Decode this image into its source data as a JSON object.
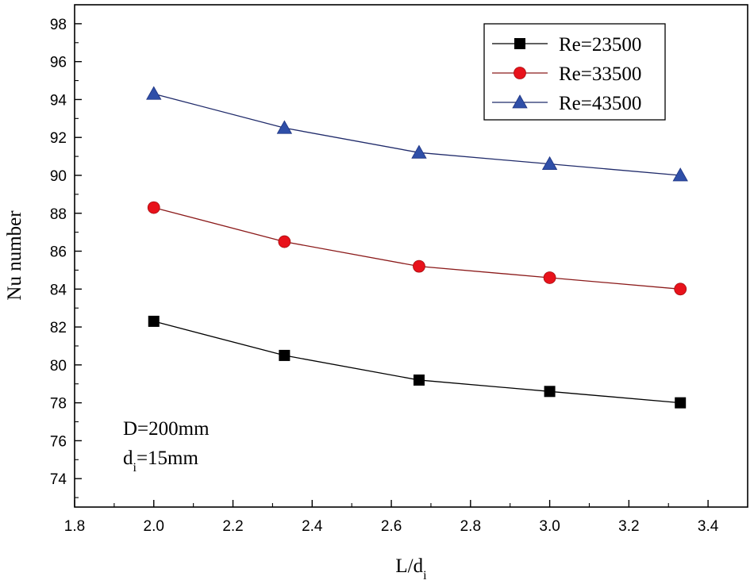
{
  "chart_data": {
    "type": "line",
    "xlabel": "L/d",
    "xlabel_sub": "i",
    "ylabel": "Nu number",
    "xlim": [
      1.8,
      3.5
    ],
    "ylim": [
      72.5,
      99
    ],
    "xticks": [
      "1.8",
      "2.0",
      "2.2",
      "2.4",
      "2.6",
      "2.8",
      "3.0",
      "3.2",
      "3.4"
    ],
    "yticks": [
      "74",
      "76",
      "78",
      "80",
      "82",
      "84",
      "86",
      "88",
      "90",
      "92",
      "94",
      "96",
      "98"
    ],
    "x": [
      2.0,
      2.33,
      2.67,
      3.0,
      3.33
    ],
    "series": [
      {
        "name": "Re=23500",
        "marker": "square",
        "color": "#000000",
        "line_color": "#000000",
        "values": [
          82.3,
          80.5,
          79.2,
          78.6,
          78.0
        ]
      },
      {
        "name": "Re=33500",
        "marker": "circle",
        "color": "#e8121b",
        "line_color": "#8b1a1a",
        "values": [
          88.3,
          86.5,
          85.2,
          84.6,
          84.0
        ]
      },
      {
        "name": "Re=43500",
        "marker": "triangle",
        "color": "#2f4fa8",
        "line_color": "#1f2a6a",
        "values": [
          94.3,
          92.5,
          91.2,
          90.6,
          90.0
        ]
      }
    ],
    "legend_position": "top-right",
    "annotations": [
      {
        "text": "D=200mm"
      },
      {
        "text": "d",
        "sub": "i",
        "tail": "=15mm"
      }
    ]
  }
}
